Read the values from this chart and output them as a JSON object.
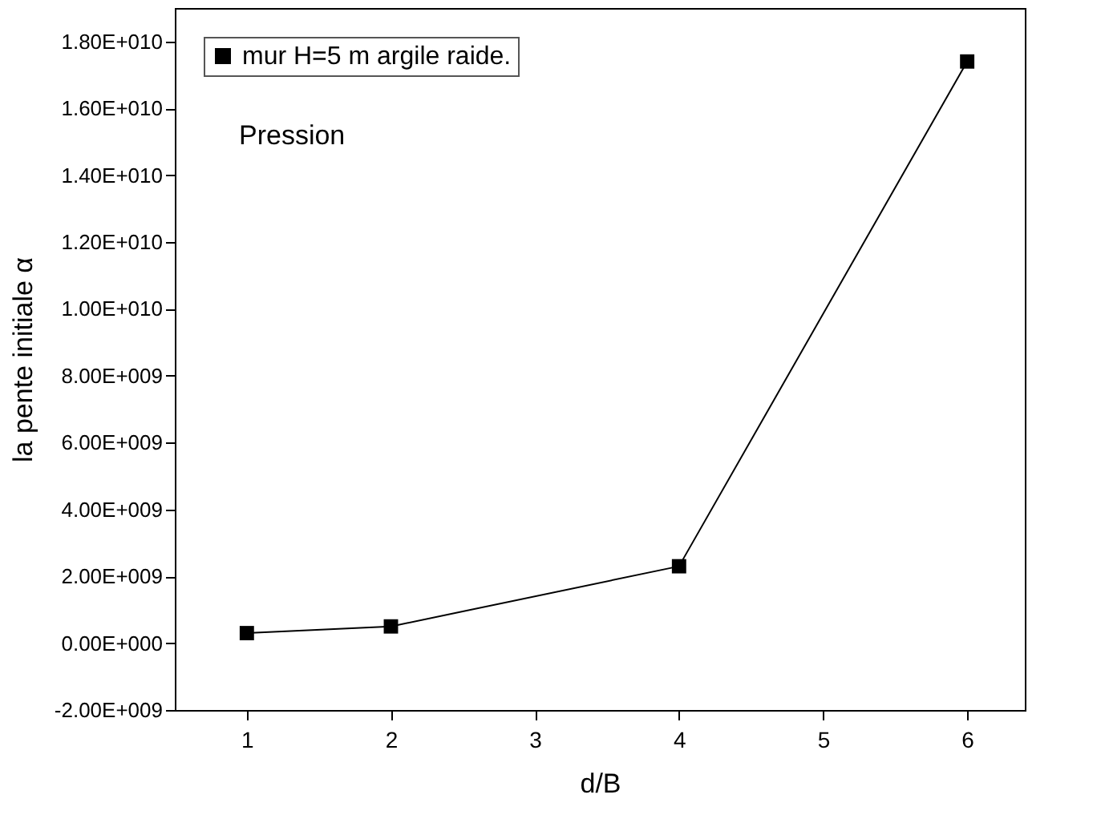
{
  "chart_data": {
    "type": "line",
    "xlabel": "d/B",
    "ylabel": "la pente initiale α",
    "x": [
      1,
      2,
      4,
      6
    ],
    "series": [
      {
        "name": "mur H=5 m argile raide.",
        "color": "#000000",
        "values": [
          300000000,
          500000000,
          2300000000,
          17400000000
        ]
      }
    ],
    "xlim": [
      0.5,
      6.4
    ],
    "xticks": [
      1,
      2,
      3,
      4,
      5,
      6
    ],
    "ylim": [
      -2000000000,
      19000000000
    ],
    "yticks": [
      {
        "value": -2000000000,
        "label": "-2.00E+009"
      },
      {
        "value": 0,
        "label": "0.00E+000"
      },
      {
        "value": 2000000000,
        "label": "2.00E+009"
      },
      {
        "value": 4000000000,
        "label": "4.00E+009"
      },
      {
        "value": 6000000000,
        "label": "6.00E+009"
      },
      {
        "value": 8000000000,
        "label": "8.00E+009"
      },
      {
        "value": 10000000000,
        "label": "1.00E+010"
      },
      {
        "value": 12000000000,
        "label": "1.20E+010"
      },
      {
        "value": 14000000000,
        "label": "1.40E+010"
      },
      {
        "value": 16000000000,
        "label": "1.60E+010"
      },
      {
        "value": 18000000000,
        "label": "1.80E+010"
      }
    ],
    "annotations": [
      "Pression"
    ],
    "marker": "square",
    "line_style": "solid",
    "legend": "top left",
    "grid": false
  }
}
